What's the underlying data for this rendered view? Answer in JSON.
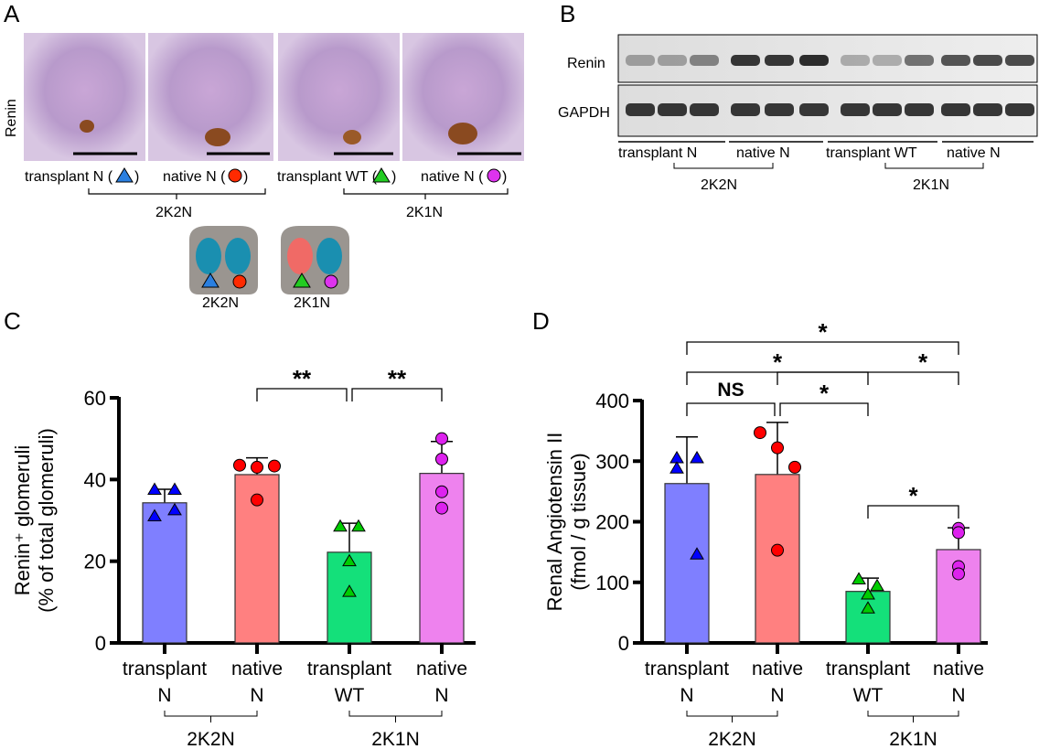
{
  "panels": {
    "a": {
      "letter": "A",
      "row_label": "Renin",
      "captions": [
        "transplant N (",
        "native N (",
        "transplant WT (",
        "native N ("
      ],
      "groups": [
        "2K2N",
        "2K1N"
      ],
      "schematic_labels": [
        "2K2N",
        "2K1N"
      ]
    },
    "b": {
      "letter": "B",
      "rows": [
        "Renin",
        "GAPDH"
      ],
      "lanes": [
        "transplant N",
        "native N",
        "transplant WT",
        "native N"
      ],
      "groups": [
        "2K2N",
        "2K1N"
      ]
    },
    "c": {
      "letter": "C"
    },
    "d": {
      "letter": "D"
    }
  },
  "colors": {
    "transplant_N": "#7f7fff",
    "native_N_2K2N": "#ff8080",
    "transplant_WT": "#14e07a",
    "native_N_2K1N": "#ee82ee",
    "pt_blue": "#0000ff",
    "pt_red": "#ff0000",
    "pt_green": "#00cc00",
    "pt_magenta": "#dd22ee"
  },
  "chart_data": [
    {
      "type": "bar",
      "panel": "C",
      "ylabel": "Renin⁺ glomeruli",
      "ylabel2": "(% of total glomeruli)",
      "ylim": [
        0,
        60
      ],
      "yticks": [
        "0",
        "20",
        "40",
        "60"
      ],
      "categories": [
        [
          "transplant",
          "N"
        ],
        [
          "native",
          "N"
        ],
        [
          "transplant",
          "WT"
        ],
        [
          "native",
          "N"
        ]
      ],
      "groups": [
        {
          "name": "2K2N",
          "cats": [
            0,
            1
          ]
        },
        {
          "name": "2K1N",
          "cats": [
            2,
            3
          ]
        }
      ],
      "means": [
        34.3,
        41.2,
        22.2,
        41.5
      ],
      "sd_top": [
        37.6,
        45.3,
        29.3,
        49.3
      ],
      "points": [
        [
          37.5,
          37.5,
          31,
          32.5
        ],
        [
          43.5,
          43,
          43.3,
          35
        ],
        [
          28.5,
          28.5,
          20,
          12.5
        ],
        [
          50,
          45,
          37,
          33
        ]
      ],
      "markers": [
        "triangle",
        "circle",
        "triangle",
        "circle"
      ],
      "significance": [
        {
          "pair": [
            1,
            2
          ],
          "label": "**"
        },
        {
          "pair": [
            2,
            3
          ],
          "label": "**"
        }
      ]
    },
    {
      "type": "bar",
      "panel": "D",
      "ylabel": "Renal Angiotensin II",
      "ylabel2": "(fmol / g tissue)",
      "ylim": [
        0,
        400
      ],
      "yticks": [
        "0",
        "100",
        "200",
        "300",
        "400"
      ],
      "categories": [
        [
          "transplant",
          "N"
        ],
        [
          "native",
          "N"
        ],
        [
          "transplant",
          "WT"
        ],
        [
          "native",
          "N"
        ]
      ],
      "groups": [
        {
          "name": "2K2N",
          "cats": [
            0,
            1
          ]
        },
        {
          "name": "2K1N",
          "cats": [
            2,
            3
          ]
        }
      ],
      "means": [
        263,
        278,
        85,
        154
      ],
      "sd_top": [
        340,
        364,
        107,
        190
      ],
      "points": [
        [
          305,
          305,
          288,
          146
        ],
        [
          347,
          322,
          290,
          153
        ],
        [
          105,
          94,
          80,
          57
        ],
        [
          189,
          182,
          126,
          114
        ]
      ],
      "markers": [
        "triangle",
        "circle",
        "triangle",
        "circle"
      ],
      "significance": [
        {
          "pair": [
            0,
            1
          ],
          "label": "NS"
        },
        {
          "pair": [
            1,
            2
          ],
          "label": "*"
        },
        {
          "pair": [
            2,
            3
          ],
          "label": "*"
        },
        {
          "pair": [
            0,
            2
          ],
          "label": "*"
        },
        {
          "pair": [
            1,
            3
          ],
          "label": "*"
        },
        {
          "pair": [
            0,
            3
          ],
          "label": "*"
        }
      ]
    }
  ]
}
